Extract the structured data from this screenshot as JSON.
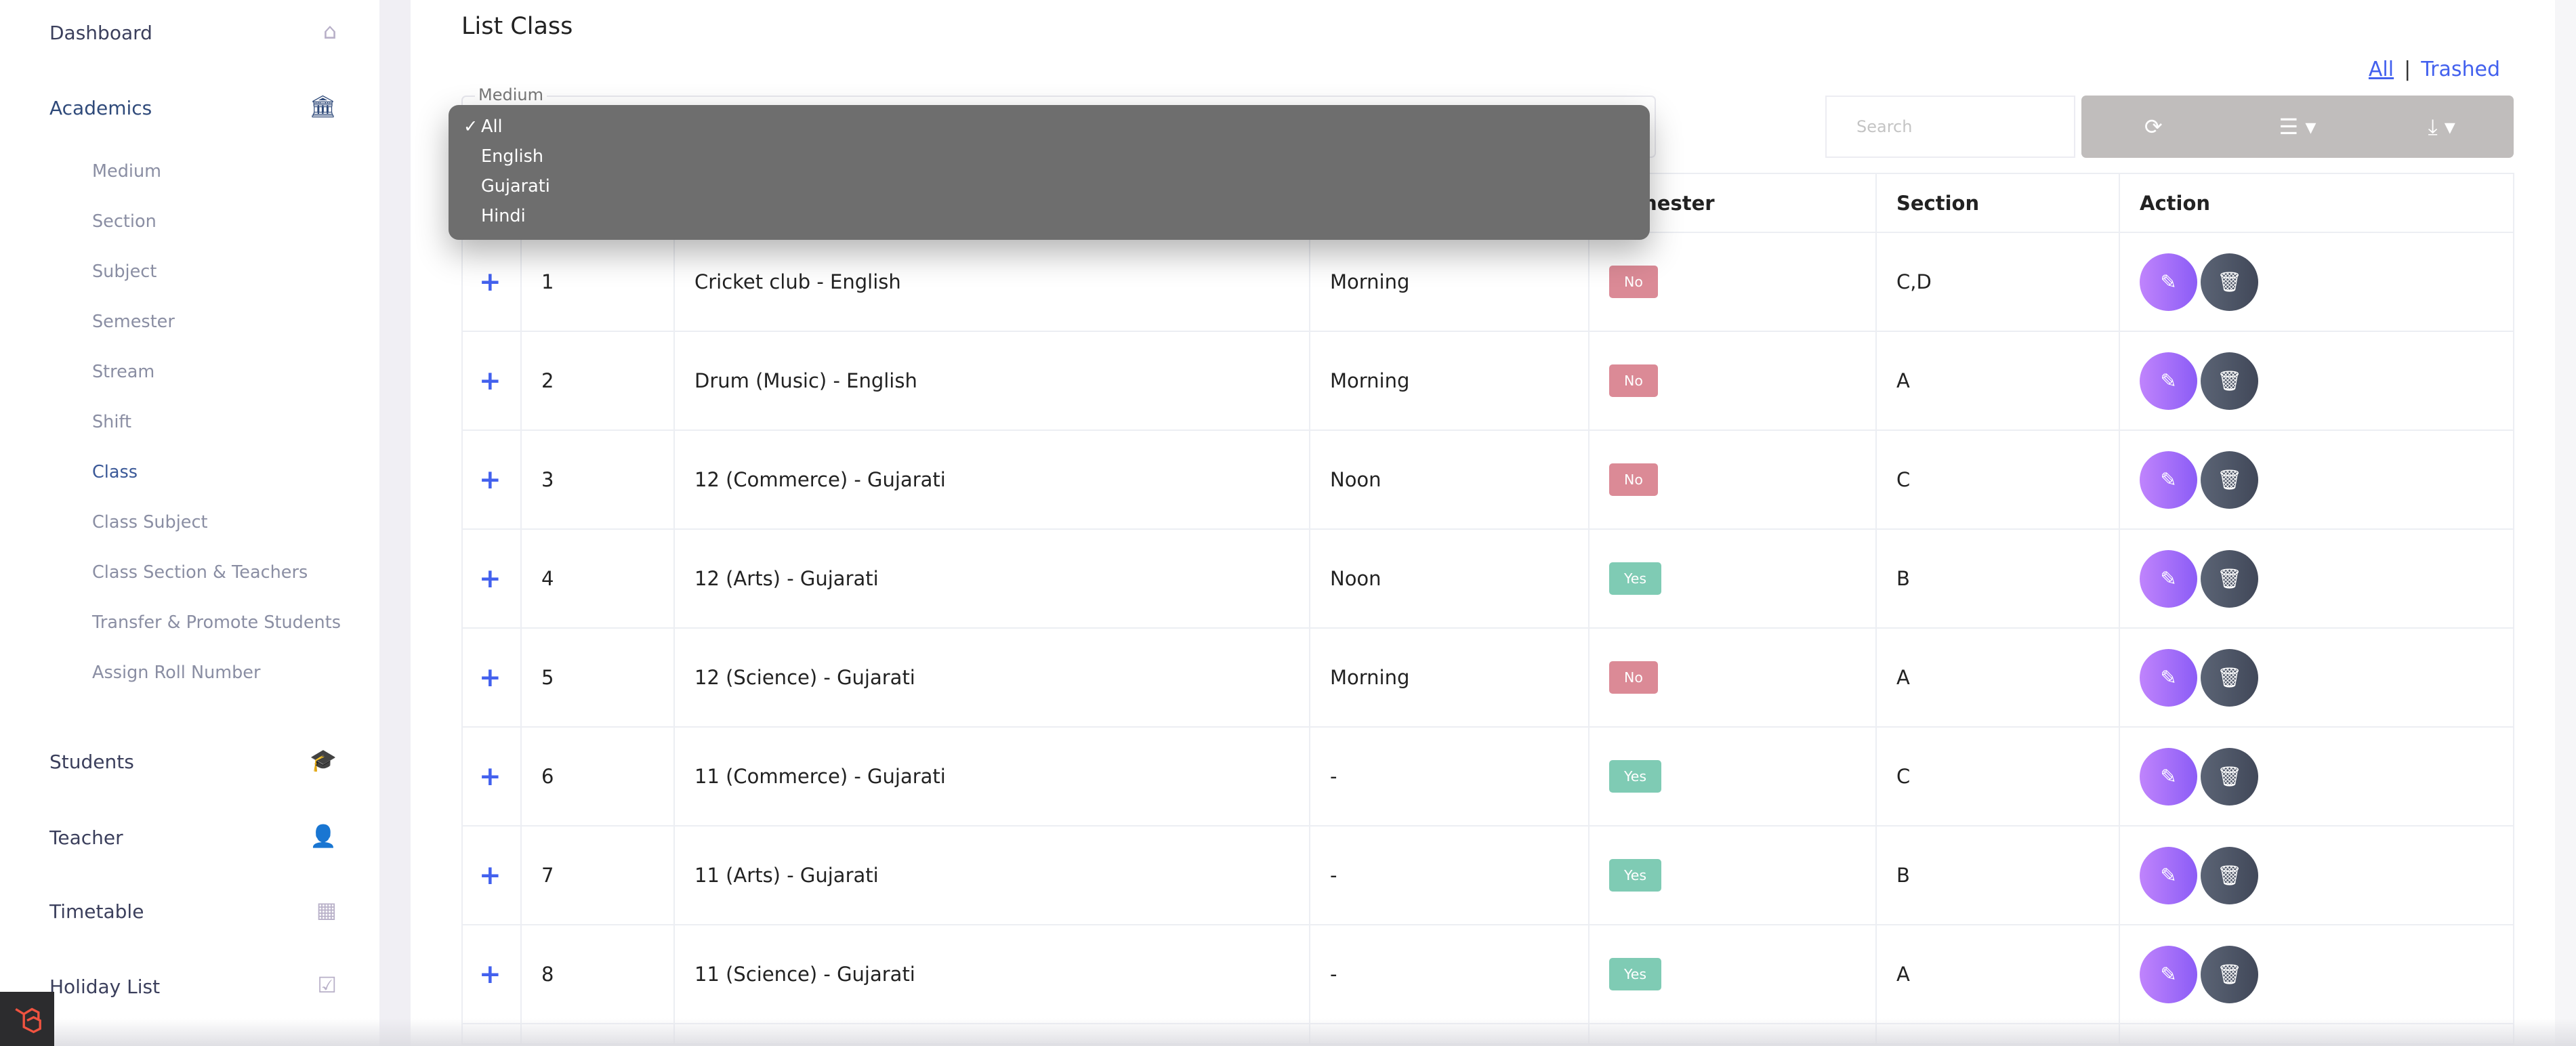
{
  "sidebar": {
    "dashboard": "Dashboard",
    "academics": "Academics",
    "sub_items": [
      "Medium",
      "Section",
      "Subject",
      "Semester",
      "Stream",
      "Shift",
      "Class",
      "Class Subject",
      "Class Section & Teachers",
      "Transfer & Promote Students",
      "Assign Roll Number"
    ],
    "active_sub": "Class",
    "students": "Students",
    "teacher": "Teacher",
    "timetable": "Timetable",
    "holiday": "Holiday List"
  },
  "page": {
    "title": "List Class",
    "link_all": "All",
    "link_trashed": "Trashed"
  },
  "filter": {
    "label": "Medium",
    "options": [
      "All",
      "English",
      "Gujarati",
      "Hindi"
    ],
    "selected": "All",
    "check": "✓"
  },
  "search": {
    "placeholder": "Search"
  },
  "table": {
    "headers": [
      "",
      "",
      "",
      "",
      "Semester",
      "Section",
      "Action"
    ],
    "rows": [
      {
        "no": "1",
        "name": "Cricket club - English",
        "shift": "Morning",
        "semester": "No",
        "section": "C,D"
      },
      {
        "no": "2",
        "name": "Drum (Music) - English",
        "shift": "Morning",
        "semester": "No",
        "section": "A"
      },
      {
        "no": "3",
        "name": "12 (Commerce) - Gujarati",
        "shift": "Noon",
        "semester": "No",
        "section": "C"
      },
      {
        "no": "4",
        "name": "12 (Arts) - Gujarati",
        "shift": "Noon",
        "semester": "Yes",
        "section": "B"
      },
      {
        "no": "5",
        "name": "12 (Science) - Gujarati",
        "shift": "Morning",
        "semester": "No",
        "section": "A"
      },
      {
        "no": "6",
        "name": "11 (Commerce) - Gujarati",
        "shift": "-",
        "semester": "Yes",
        "section": "C"
      },
      {
        "no": "7",
        "name": "11 (Arts) - Gujarati",
        "shift": "-",
        "semester": "Yes",
        "section": "B"
      },
      {
        "no": "8",
        "name": "11 (Science) - Gujarati",
        "shift": "-",
        "semester": "Yes",
        "section": "A"
      }
    ]
  },
  "colors": {
    "accent": "#4361ee",
    "no_badge": "#db8a96",
    "yes_badge": "#7fcbb4",
    "toolbar": "#c0bdbc"
  }
}
